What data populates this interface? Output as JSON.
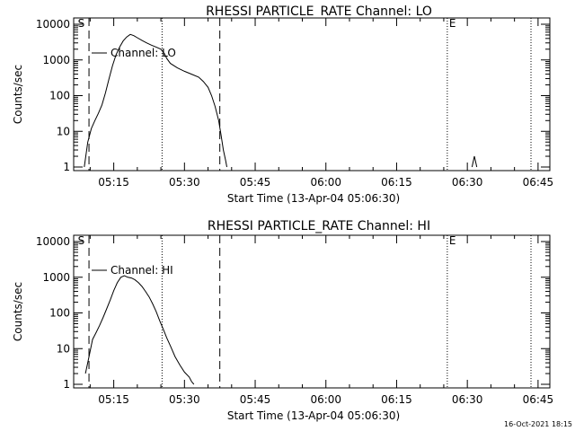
{
  "footer_timestamp": "16-Oct-2021 18:15",
  "chart_data": [
    {
      "type": "line",
      "title": "RHESSI PARTICLE_RATE Channel: LO",
      "xlabel": "Start Time (13-Apr-04 05:06:30)",
      "ylabel": "Counts/sec",
      "yscale": "log",
      "ylim": [
        1,
        10000
      ],
      "xlim": [
        "05:06:30",
        "06:47:30"
      ],
      "x_ticks": [
        "05:15",
        "05:30",
        "05:45",
        "06:00",
        "06:15",
        "06:30",
        "06:45"
      ],
      "y_ticks": [
        "1",
        "10",
        "100",
        "1000",
        "10000"
      ],
      "legend": "Channel: LO",
      "markers": [
        {
          "label": "S",
          "time": "05:07:00"
        },
        {
          "label": "E",
          "time": "06:25:45"
        }
      ],
      "vlines_dashed": [
        "05:09:45",
        "05:37:30"
      ],
      "vlines_dotted": [
        "05:25:15",
        "06:25:45",
        "06:43:30"
      ],
      "series": [
        {
          "x": [
            "05:08:45",
            "05:09:30",
            "05:10:15",
            "05:11:00",
            "05:11:45",
            "05:12:30",
            "05:13:15",
            "05:14:00",
            "05:14:45",
            "05:15:30",
            "05:16:15",
            "05:17:00",
            "05:17:45",
            "05:18:30",
            "05:19:15",
            "05:20:00",
            "05:21:00",
            "05:22:00",
            "05:23:00",
            "05:24:00",
            "05:25:00",
            "05:25:45",
            "05:26:15",
            "05:27:00",
            "05:28:30",
            "05:30:00",
            "05:31:30",
            "05:33:00",
            "05:34:00",
            "05:35:00",
            "05:35:45",
            "05:36:30",
            "05:37:15",
            "05:37:45",
            "05:38:15",
            "05:38:45",
            "05:39:00"
          ],
          "y": [
            1,
            5,
            12,
            20,
            32,
            55,
            120,
            300,
            700,
            1400,
            2300,
            3400,
            4400,
            5200,
            4800,
            4200,
            3500,
            3000,
            2600,
            2300,
            2000,
            1500,
            1100,
            800,
            600,
            480,
            400,
            330,
            250,
            170,
            100,
            50,
            20,
            8,
            3,
            1.5,
            1
          ]
        }
      ],
      "secondary_spike": {
        "x": [
          "06:31:00",
          "06:31:30",
          "06:32:00"
        ],
        "y": [
          1,
          2,
          1
        ]
      }
    },
    {
      "type": "line",
      "title": "RHESSI PARTICLE_RATE Channel: HI",
      "xlabel": "Start Time (13-Apr-04 05:06:30)",
      "ylabel": "Counts/sec",
      "yscale": "log",
      "ylim": [
        1,
        10000
      ],
      "xlim": [
        "05:06:30",
        "06:47:30"
      ],
      "x_ticks": [
        "05:15",
        "05:30",
        "05:45",
        "06:00",
        "06:15",
        "06:30",
        "06:45"
      ],
      "y_ticks": [
        "1",
        "10",
        "100",
        "1000",
        "10000"
      ],
      "legend": "Channel: HI",
      "markers": [
        {
          "label": "S",
          "time": "05:07:00"
        },
        {
          "label": "E",
          "time": "06:25:45"
        }
      ],
      "vlines_dashed": [
        "05:09:45",
        "05:37:30"
      ],
      "vlines_dotted": [
        "05:25:15",
        "06:25:45",
        "06:43:30"
      ],
      "series": [
        {
          "x": [
            "05:09:00",
            "05:09:45",
            "05:10:30",
            "05:11:15",
            "05:12:00",
            "05:12:45",
            "05:13:30",
            "05:14:15",
            "05:15:00",
            "05:15:45",
            "05:16:30",
            "05:17:15",
            "05:18:00",
            "05:18:45",
            "05:19:30",
            "05:20:15",
            "05:21:00",
            "05:21:45",
            "05:22:30",
            "05:23:15",
            "05:24:00",
            "05:24:45",
            "05:25:30",
            "05:26:15",
            "05:27:00",
            "05:28:00",
            "05:29:00",
            "05:30:00",
            "05:31:00",
            "05:31:30",
            "05:32:00"
          ],
          "y": [
            2,
            6,
            18,
            28,
            45,
            75,
            130,
            230,
            420,
            700,
            1000,
            1100,
            1000,
            950,
            850,
            700,
            550,
            400,
            280,
            180,
            110,
            60,
            35,
            20,
            12,
            6,
            3.5,
            2.2,
            1.6,
            1.2,
            1
          ]
        }
      ]
    }
  ]
}
